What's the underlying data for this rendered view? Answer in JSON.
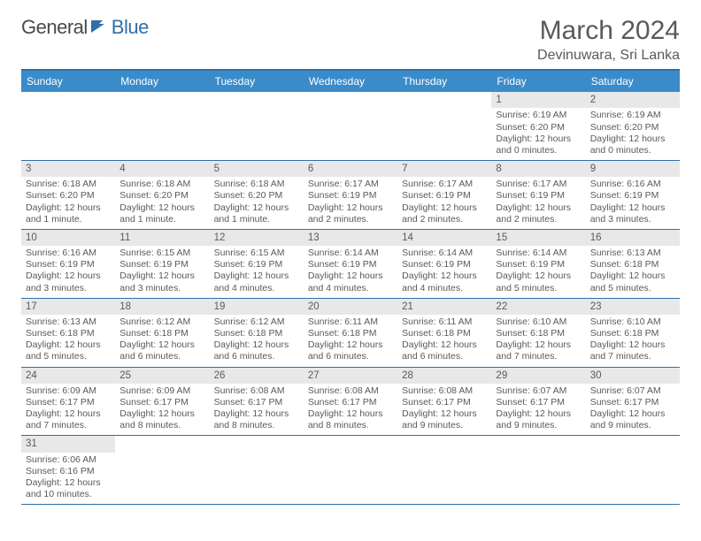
{
  "logo": {
    "word1": "General",
    "word2": "Blue"
  },
  "title": "March 2024",
  "location": "Devinuwara, Sri Lanka",
  "dayNames": [
    "Sunday",
    "Monday",
    "Tuesday",
    "Wednesday",
    "Thursday",
    "Friday",
    "Saturday"
  ],
  "colors": {
    "headerBg": "#3a8bc9",
    "border": "#2f6fa8",
    "dayBarBg": "#e8e8e8",
    "text": "#5a5a5a",
    "logoBlue": "#2f6fa8"
  },
  "layout": {
    "leadingBlanks": 5,
    "totalDays": 31,
    "columns": 7
  },
  "days": [
    {
      "n": 1,
      "sunrise": "6:19 AM",
      "sunset": "6:20 PM",
      "daylight": "12 hours and 0 minutes."
    },
    {
      "n": 2,
      "sunrise": "6:19 AM",
      "sunset": "6:20 PM",
      "daylight": "12 hours and 0 minutes."
    },
    {
      "n": 3,
      "sunrise": "6:18 AM",
      "sunset": "6:20 PM",
      "daylight": "12 hours and 1 minute."
    },
    {
      "n": 4,
      "sunrise": "6:18 AM",
      "sunset": "6:20 PM",
      "daylight": "12 hours and 1 minute."
    },
    {
      "n": 5,
      "sunrise": "6:18 AM",
      "sunset": "6:20 PM",
      "daylight": "12 hours and 1 minute."
    },
    {
      "n": 6,
      "sunrise": "6:17 AM",
      "sunset": "6:19 PM",
      "daylight": "12 hours and 2 minutes."
    },
    {
      "n": 7,
      "sunrise": "6:17 AM",
      "sunset": "6:19 PM",
      "daylight": "12 hours and 2 minutes."
    },
    {
      "n": 8,
      "sunrise": "6:17 AM",
      "sunset": "6:19 PM",
      "daylight": "12 hours and 2 minutes."
    },
    {
      "n": 9,
      "sunrise": "6:16 AM",
      "sunset": "6:19 PM",
      "daylight": "12 hours and 3 minutes."
    },
    {
      "n": 10,
      "sunrise": "6:16 AM",
      "sunset": "6:19 PM",
      "daylight": "12 hours and 3 minutes."
    },
    {
      "n": 11,
      "sunrise": "6:15 AM",
      "sunset": "6:19 PM",
      "daylight": "12 hours and 3 minutes."
    },
    {
      "n": 12,
      "sunrise": "6:15 AM",
      "sunset": "6:19 PM",
      "daylight": "12 hours and 4 minutes."
    },
    {
      "n": 13,
      "sunrise": "6:14 AM",
      "sunset": "6:19 PM",
      "daylight": "12 hours and 4 minutes."
    },
    {
      "n": 14,
      "sunrise": "6:14 AM",
      "sunset": "6:19 PM",
      "daylight": "12 hours and 4 minutes."
    },
    {
      "n": 15,
      "sunrise": "6:14 AM",
      "sunset": "6:19 PM",
      "daylight": "12 hours and 5 minutes."
    },
    {
      "n": 16,
      "sunrise": "6:13 AM",
      "sunset": "6:18 PM",
      "daylight": "12 hours and 5 minutes."
    },
    {
      "n": 17,
      "sunrise": "6:13 AM",
      "sunset": "6:18 PM",
      "daylight": "12 hours and 5 minutes."
    },
    {
      "n": 18,
      "sunrise": "6:12 AM",
      "sunset": "6:18 PM",
      "daylight": "12 hours and 6 minutes."
    },
    {
      "n": 19,
      "sunrise": "6:12 AM",
      "sunset": "6:18 PM",
      "daylight": "12 hours and 6 minutes."
    },
    {
      "n": 20,
      "sunrise": "6:11 AM",
      "sunset": "6:18 PM",
      "daylight": "12 hours and 6 minutes."
    },
    {
      "n": 21,
      "sunrise": "6:11 AM",
      "sunset": "6:18 PM",
      "daylight": "12 hours and 6 minutes."
    },
    {
      "n": 22,
      "sunrise": "6:10 AM",
      "sunset": "6:18 PM",
      "daylight": "12 hours and 7 minutes."
    },
    {
      "n": 23,
      "sunrise": "6:10 AM",
      "sunset": "6:18 PM",
      "daylight": "12 hours and 7 minutes."
    },
    {
      "n": 24,
      "sunrise": "6:09 AM",
      "sunset": "6:17 PM",
      "daylight": "12 hours and 7 minutes."
    },
    {
      "n": 25,
      "sunrise": "6:09 AM",
      "sunset": "6:17 PM",
      "daylight": "12 hours and 8 minutes."
    },
    {
      "n": 26,
      "sunrise": "6:08 AM",
      "sunset": "6:17 PM",
      "daylight": "12 hours and 8 minutes."
    },
    {
      "n": 27,
      "sunrise": "6:08 AM",
      "sunset": "6:17 PM",
      "daylight": "12 hours and 8 minutes."
    },
    {
      "n": 28,
      "sunrise": "6:08 AM",
      "sunset": "6:17 PM",
      "daylight": "12 hours and 9 minutes."
    },
    {
      "n": 29,
      "sunrise": "6:07 AM",
      "sunset": "6:17 PM",
      "daylight": "12 hours and 9 minutes."
    },
    {
      "n": 30,
      "sunrise": "6:07 AM",
      "sunset": "6:17 PM",
      "daylight": "12 hours and 9 minutes."
    },
    {
      "n": 31,
      "sunrise": "6:06 AM",
      "sunset": "6:16 PM",
      "daylight": "12 hours and 10 minutes."
    }
  ],
  "labels": {
    "sunrise": "Sunrise:",
    "sunset": "Sunset:",
    "daylight": "Daylight:"
  }
}
